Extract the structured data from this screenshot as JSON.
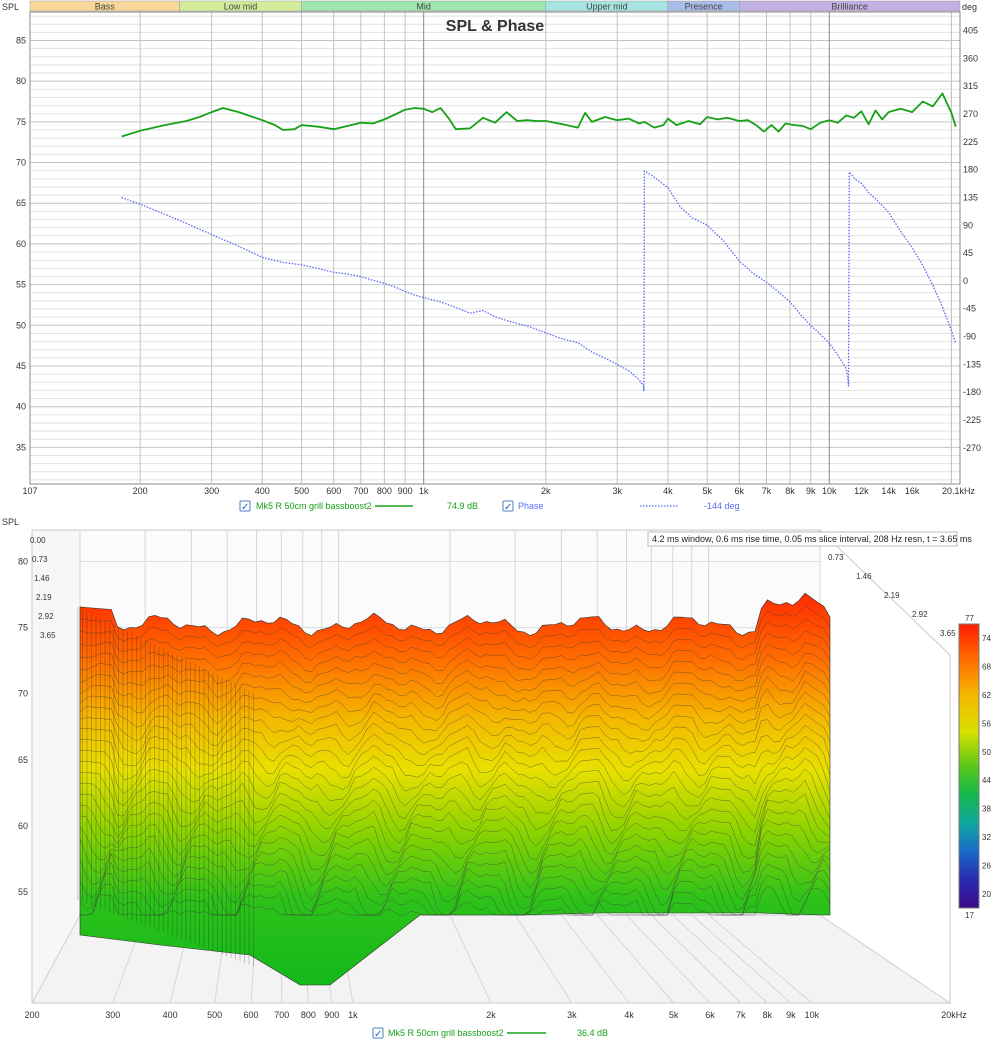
{
  "chart_data": [
    {
      "type": "line",
      "title": "SPL & Phase",
      "ylabel": "SPL",
      "y2label": "deg",
      "xunit": "kHz",
      "x_axis": "log",
      "xlim": [
        107,
        21000
      ],
      "ylim": [
        30.5,
        88.5
      ],
      "y2lim": [
        -328.5,
        435
      ],
      "x_tick_labels": [
        "107",
        "200",
        "300",
        "400",
        "500",
        "600",
        "700",
        "800",
        "900",
        "1k",
        "2k",
        "3k",
        "4k",
        "5k",
        "6k",
        "7k",
        "8k",
        "9k",
        "10k",
        "12k",
        "14k",
        "16k",
        "20.1kHz"
      ],
      "x_tick_values": [
        107,
        200,
        300,
        400,
        500,
        600,
        700,
        800,
        900,
        1000,
        2000,
        3000,
        4000,
        5000,
        6000,
        7000,
        8000,
        9000,
        10000,
        12000,
        14000,
        16000,
        20100
      ],
      "y_ticks": [
        35,
        40,
        45,
        50,
        55,
        60,
        65,
        70,
        75,
        80,
        85
      ],
      "y2_ticks": [
        405,
        360,
        315,
        270,
        225,
        180,
        135,
        90,
        45,
        0,
        -45,
        -90,
        -135,
        -180,
        -225,
        -270
      ],
      "bands": [
        {
          "name": "Bass",
          "from": 107,
          "to": 250,
          "color": "#f7d79a"
        },
        {
          "name": "Low mid",
          "from": 250,
          "to": 500,
          "color": "#d3ec9c"
        },
        {
          "name": "Mid",
          "from": 500,
          "to": 2000,
          "color": "#9fe6b0"
        },
        {
          "name": "Upper mid",
          "from": 2000,
          "to": 4000,
          "color": "#a5e4e0"
        },
        {
          "name": "Presence",
          "from": 4000,
          "to": 6000,
          "color": "#a9bde8"
        },
        {
          "name": "Brilliance",
          "from": 6000,
          "to": 21000,
          "color": "#c3b0e3"
        }
      ],
      "series": [
        {
          "name": "Mk5 R 50cm grill bassboost2",
          "readout": "74.9 dB",
          "color": "#17a117",
          "axis": "left",
          "x": [
            180,
            200,
            230,
            260,
            280,
            300,
            320,
            350,
            400,
            430,
            450,
            480,
            500,
            550,
            600,
            650,
            700,
            750,
            800,
            850,
            900,
            950,
            1000,
            1050,
            1100,
            1150,
            1200,
            1300,
            1400,
            1500,
            1600,
            1700,
            1800,
            1900,
            2000,
            2200,
            2400,
            2500,
            2600,
            2700,
            2800,
            3000,
            3200,
            3400,
            3500,
            3700,
            3900,
            4000,
            4200,
            4500,
            4800,
            5000,
            5300,
            5600,
            6000,
            6300,
            6600,
            6900,
            7200,
            7500,
            7800,
            8200,
            8600,
            9000,
            9500,
            10000,
            10500,
            11000,
            11500,
            12000,
            12500,
            13000,
            13500,
            14000,
            15000,
            16000,
            17000,
            18000,
            19000,
            20000,
            20500
          ],
          "y": [
            73.2,
            73.9,
            74.6,
            75.1,
            75.6,
            76.2,
            76.7,
            76.2,
            75.2,
            74.6,
            74.0,
            74.1,
            74.6,
            74.4,
            74.1,
            74.5,
            74.9,
            74.8,
            75.3,
            75.9,
            76.5,
            76.7,
            76.6,
            76.2,
            76.7,
            75.5,
            74.1,
            74.2,
            75.5,
            74.9,
            76.2,
            75.1,
            75.2,
            75.1,
            75.1,
            74.7,
            74.3,
            76.1,
            75.0,
            75.3,
            75.6,
            75.2,
            75.4,
            74.8,
            75.0,
            74.3,
            74.6,
            75.4,
            74.6,
            75.1,
            74.7,
            75.6,
            75.3,
            75.5,
            75.1,
            75.2,
            74.6,
            73.8,
            74.6,
            73.8,
            74.8,
            74.6,
            74.5,
            74.1,
            74.9,
            75.2,
            74.9,
            75.8,
            75.5,
            76.3,
            74.7,
            76.4,
            75.3,
            76.2,
            76.6,
            76.2,
            77.5,
            76.9,
            78.5,
            76.1,
            74.4
          ]
        },
        {
          "name": "Phase",
          "readout": "-144 deg",
          "color": "#5a6af5",
          "axis": "right",
          "style": "dotted",
          "x": [
            180,
            200,
            230,
            260,
            300,
            350,
            400,
            450,
            500,
            550,
            600,
            650,
            700,
            750,
            800,
            850,
            900,
            950,
            1000,
            1100,
            1200,
            1300,
            1400,
            1500,
            1600,
            1800,
            2000,
            2200,
            2400,
            2600,
            2800,
            3000,
            3200,
            3400,
            3480,
            3490,
            3500,
            3700,
            4000,
            4300,
            4600,
            5000,
            5500,
            6000,
            6500,
            7000,
            7500,
            8000,
            8500,
            9000,
            9500,
            10000,
            10500,
            11000,
            11100,
            11150,
            11200,
            11600,
            12000,
            12500,
            13000,
            14000,
            15000,
            16000,
            17000,
            18000,
            19000,
            20000,
            20500
          ],
          "y": [
            135,
            124,
            108,
            93,
            75,
            56,
            38,
            30,
            26,
            20,
            14,
            11,
            7,
            1,
            -4,
            -10,
            -17,
            -23,
            -27,
            -34,
            -43,
            -52,
            -48,
            -58,
            -64,
            -73,
            -84,
            -94,
            -100,
            -115,
            -125,
            -135,
            -145,
            -160,
            -170,
            -178,
            178,
            168,
            151,
            119,
            102,
            90,
            64,
            32,
            12,
            -2,
            -18,
            -34,
            -55,
            -72,
            -86,
            -101,
            -120,
            -142,
            -154,
            -170,
            176,
            164,
            158,
            143,
            133,
            111,
            80,
            54,
            25,
            -7,
            -42,
            -80,
            -101
          ]
        }
      ]
    },
    {
      "type": "area",
      "subtype": "waterfall",
      "ylabel": "SPL",
      "xunit": "kHz",
      "x_axis": "log",
      "info": "4.2 ms window, 0.6 ms rise time, 0.05 ms slice interval, 208 Hz resn, t = 3.65 ms",
      "x_tick_labels": [
        "200",
        "300",
        "400",
        "500",
        "600",
        "700",
        "800",
        "900",
        "1k",
        "2k",
        "3k",
        "4k",
        "5k",
        "6k",
        "7k",
        "8k",
        "9k",
        "10k",
        "20kHz"
      ],
      "x_tick_values": [
        200,
        300,
        400,
        500,
        600,
        700,
        800,
        900,
        1000,
        2000,
        3000,
        4000,
        5000,
        6000,
        7000,
        8000,
        9000,
        10000,
        20000
      ],
      "y_ticks": [
        55,
        60,
        65,
        70,
        75,
        80
      ],
      "time_labels_left": [
        "0.00",
        "0.73",
        "1.46",
        "2.19",
        "2.92",
        "3.65"
      ],
      "time_labels_right": [
        "0.73",
        "1.46",
        "2.19",
        "2.92",
        "3.65"
      ],
      "colorbar": {
        "min": 17,
        "max": 77,
        "ticks": [
          77,
          74,
          68,
          62,
          56,
          50,
          44,
          38,
          32,
          26,
          20,
          17
        ]
      },
      "series": [
        {
          "name": "Mk5 R 50cm grill bassboost2",
          "readout": "36.4 dB",
          "color": "#17a117"
        }
      ]
    }
  ],
  "legend_check": "✓"
}
